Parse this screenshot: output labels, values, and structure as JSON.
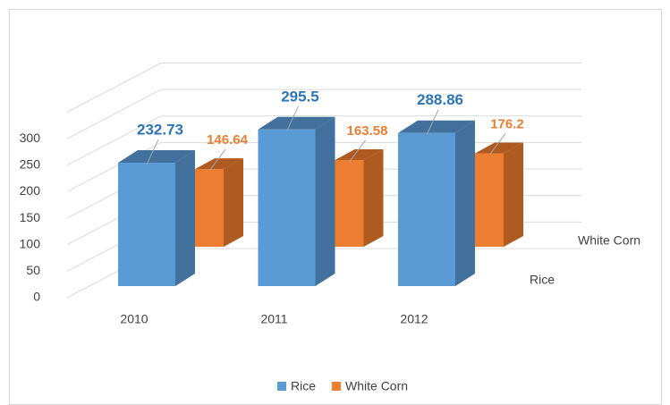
{
  "chart_data": {
    "type": "bar3d",
    "categories": [
      "2010",
      "2011",
      "2012"
    ],
    "series": [
      {
        "name": "Rice",
        "color": "#5b9bd5",
        "side_color": "#41719c",
        "values": [
          232.73,
          295.5,
          288.86
        ]
      },
      {
        "name": "White Corn",
        "color": "#ed7d31",
        "side_color": "#ae5a21",
        "values": [
          146.64,
          163.58,
          176.2
        ]
      }
    ],
    "ylim": [
      0,
      350
    ],
    "yticks": [
      0,
      50,
      100,
      150,
      200,
      250,
      300
    ],
    "grid": true,
    "legend": "bottom"
  }
}
